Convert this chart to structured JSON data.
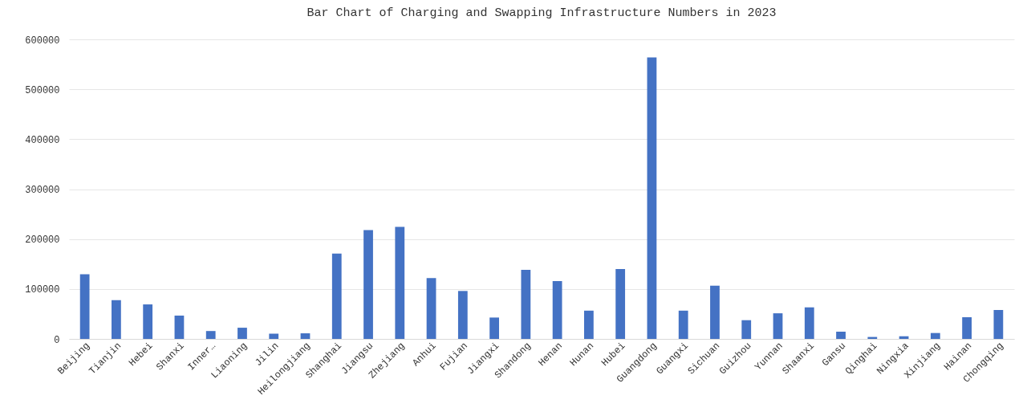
{
  "chart_data": {
    "type": "bar",
    "title": "Bar Chart of Charging and Swapping Infrastructure Numbers in 2023",
    "categories": [
      "Beijing",
      "Tianjin",
      "Hebei",
      "Shanxi",
      "Inner…",
      "Liaoning",
      "Jilin",
      "Heilongjiang",
      "Shanghai",
      "Jiangsu",
      "Zhejiang",
      "Anhui",
      "Fujian",
      "Jiangxi",
      "Shandong",
      "Henan",
      "Hunan",
      "Hubei",
      "Guangdong",
      "Guangxi",
      "Sichuan",
      "Guizhou",
      "Yunnan",
      "Shaanxi",
      "Gansu",
      "Qinghai",
      "Ningxia",
      "Xinjiang",
      "Hainan",
      "Chongqing"
    ],
    "values": [
      129600,
      77600,
      69100,
      46700,
      15800,
      22400,
      10500,
      11200,
      171000,
      217800,
      224300,
      121700,
      96000,
      42800,
      138200,
      115800,
      56600,
      140100,
      563800,
      56600,
      106600,
      37500,
      51300,
      63200,
      14500,
      3900,
      5300,
      11800,
      43400,
      57900
    ],
    "color": "#4472c4",
    "ylim": [
      0,
      600000
    ],
    "yticks": [
      0,
      100000,
      200000,
      300000,
      400000,
      500000,
      600000
    ],
    "grid": "y"
  }
}
